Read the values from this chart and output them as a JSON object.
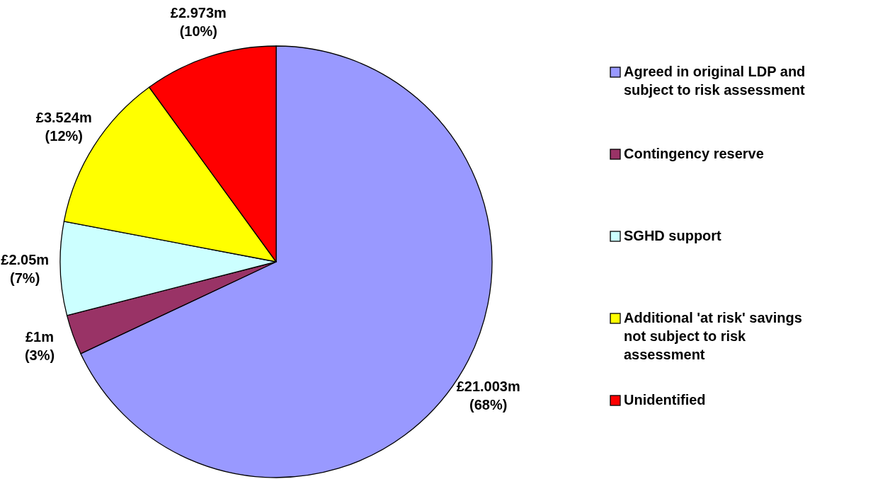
{
  "chart_data": {
    "type": "pie",
    "categories": [
      "Agreed in original LDP and subject to risk assessment",
      "Contingency reserve",
      "SGHD support",
      "Additional 'at risk' savings not subject to risk assessment",
      "Unidentified"
    ],
    "values": [
      68,
      3,
      7,
      12,
      10
    ],
    "colors": [
      "#9999ff",
      "#993366",
      "#ccffff",
      "#ffff00",
      "#ff0000"
    ],
    "value_labels": [
      "£21.003m (68%)",
      "£1m (3%)",
      "£2.05m (7%)",
      "£3.524m (12%)",
      "£2.973m (10%)"
    ],
    "legend": "right"
  }
}
